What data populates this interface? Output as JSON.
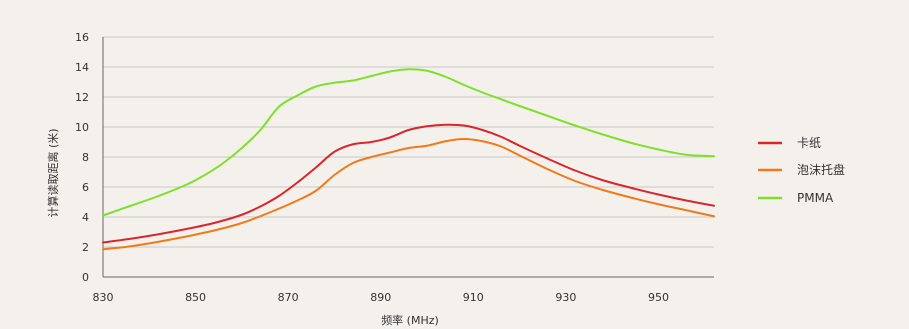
{
  "chart_data": {
    "type": "line",
    "title": "",
    "xlabel": "频率 (MHz)",
    "ylabel": "计算读取距离 (米)",
    "xlim": [
      830,
      962
    ],
    "ylim": [
      0,
      16
    ],
    "xticks": [
      830,
      850,
      870,
      890,
      910,
      930,
      950
    ],
    "yticks": [
      0,
      2,
      4,
      6,
      8,
      10,
      12,
      14,
      16
    ],
    "grid": "horizontal",
    "legend_position": "right",
    "series": [
      {
        "name": "卡纸",
        "color": "#d7262c",
        "points": [
          [
            830,
            2.3
          ],
          [
            836,
            2.55
          ],
          [
            842,
            2.85
          ],
          [
            848,
            3.2
          ],
          [
            854,
            3.6
          ],
          [
            860,
            4.15
          ],
          [
            864,
            4.7
          ],
          [
            868,
            5.4
          ],
          [
            872,
            6.3
          ],
          [
            876,
            7.3
          ],
          [
            880,
            8.35
          ],
          [
            884,
            8.85
          ],
          [
            888,
            9.0
          ],
          [
            892,
            9.3
          ],
          [
            896,
            9.8
          ],
          [
            900,
            10.05
          ],
          [
            904,
            10.15
          ],
          [
            908,
            10.1
          ],
          [
            912,
            9.8
          ],
          [
            916,
            9.35
          ],
          [
            920,
            8.75
          ],
          [
            926,
            7.9
          ],
          [
            932,
            7.1
          ],
          [
            938,
            6.45
          ],
          [
            944,
            5.95
          ],
          [
            950,
            5.5
          ],
          [
            956,
            5.1
          ],
          [
            962,
            4.75
          ]
        ]
      },
      {
        "name": "泡沫托盘",
        "color": "#f07a1a",
        "points": [
          [
            830,
            1.85
          ],
          [
            836,
            2.05
          ],
          [
            842,
            2.35
          ],
          [
            848,
            2.7
          ],
          [
            854,
            3.1
          ],
          [
            860,
            3.6
          ],
          [
            866,
            4.3
          ],
          [
            872,
            5.1
          ],
          [
            876,
            5.75
          ],
          [
            880,
            6.8
          ],
          [
            884,
            7.6
          ],
          [
            888,
            8.0
          ],
          [
            892,
            8.3
          ],
          [
            896,
            8.6
          ],
          [
            900,
            8.75
          ],
          [
            904,
            9.05
          ],
          [
            908,
            9.2
          ],
          [
            912,
            9.05
          ],
          [
            916,
            8.7
          ],
          [
            920,
            8.1
          ],
          [
            926,
            7.2
          ],
          [
            932,
            6.4
          ],
          [
            938,
            5.8
          ],
          [
            944,
            5.3
          ],
          [
            950,
            4.85
          ],
          [
            956,
            4.45
          ],
          [
            962,
            4.05
          ]
        ]
      },
      {
        "name": "PMMA",
        "color": "#7ee02a",
        "points": [
          [
            830,
            4.1
          ],
          [
            836,
            4.75
          ],
          [
            842,
            5.4
          ],
          [
            848,
            6.15
          ],
          [
            852,
            6.8
          ],
          [
            856,
            7.6
          ],
          [
            860,
            8.6
          ],
          [
            864,
            9.8
          ],
          [
            868,
            11.35
          ],
          [
            872,
            12.1
          ],
          [
            876,
            12.7
          ],
          [
            880,
            12.95
          ],
          [
            884,
            13.1
          ],
          [
            888,
            13.4
          ],
          [
            892,
            13.7
          ],
          [
            896,
            13.85
          ],
          [
            900,
            13.75
          ],
          [
            904,
            13.35
          ],
          [
            908,
            12.8
          ],
          [
            912,
            12.3
          ],
          [
            916,
            11.85
          ],
          [
            920,
            11.4
          ],
          [
            926,
            10.75
          ],
          [
            932,
            10.1
          ],
          [
            938,
            9.5
          ],
          [
            944,
            8.95
          ],
          [
            950,
            8.5
          ],
          [
            956,
            8.15
          ],
          [
            962,
            8.05
          ]
        ]
      }
    ]
  }
}
